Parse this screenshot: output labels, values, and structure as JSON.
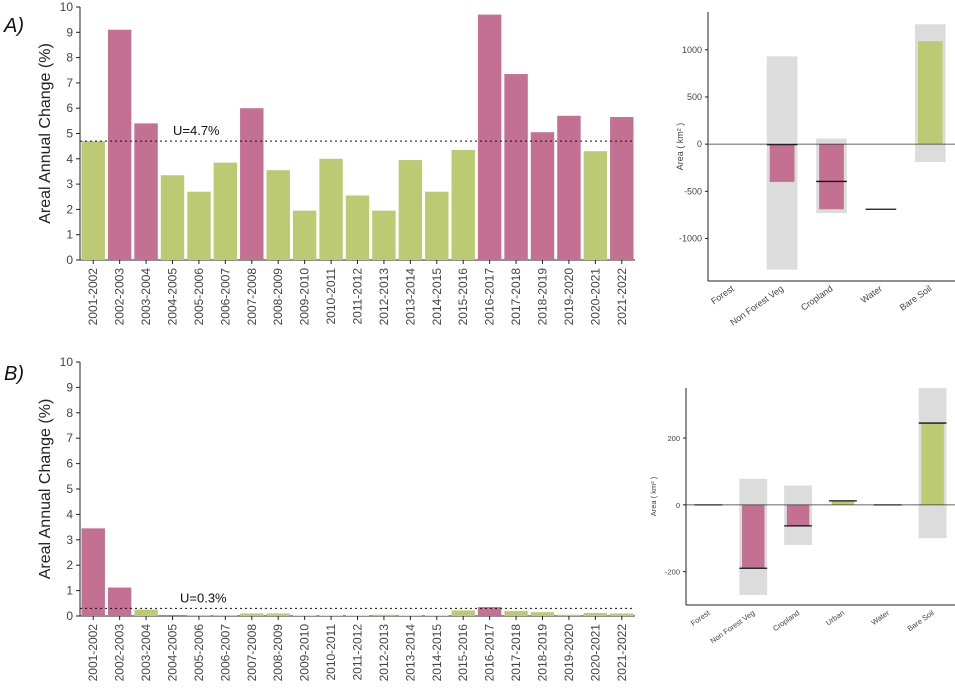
{
  "colors": {
    "loss": "#c37093",
    "gain": "#bccb73",
    "uncertainty_band": "#dcdcdc",
    "axis": "#222222"
  },
  "panels": [
    {
      "letter": "A)"
    },
    {
      "letter": "B)"
    }
  ],
  "chart_data": [
    {
      "id": "A-annual",
      "type": "bar",
      "title": "",
      "ylabel": "Areal Annual Change (%)",
      "xlabel": "",
      "ylim": [
        0,
        10
      ],
      "yticks": [
        0,
        1,
        2,
        3,
        4,
        5,
        6,
        7,
        8,
        9,
        10
      ],
      "categories": [
        "2001-2002",
        "2002-2003",
        "2003-2004",
        "2004-2005",
        "2005-2006",
        "2006-2007",
        "2007-2008",
        "2008-2009",
        "2009-2010",
        "2010-2011",
        "2011-2012",
        "2012-2013",
        "2013-2014",
        "2014-2015",
        "2015-2016",
        "2016-2017",
        "2017-2018",
        "2018-2019",
        "2019-2020",
        "2020-2021",
        "2021-2022"
      ],
      "values": [
        4.7,
        9.1,
        5.4,
        3.35,
        2.7,
        3.85,
        6.0,
        3.55,
        1.95,
        4.0,
        2.55,
        1.95,
        3.95,
        2.7,
        4.35,
        9.7,
        7.35,
        5.05,
        5.7,
        4.3,
        5.65
      ],
      "classes": [
        "gain",
        "loss",
        "loss",
        "gain",
        "gain",
        "gain",
        "loss",
        "gain",
        "gain",
        "gain",
        "gain",
        "gain",
        "gain",
        "gain",
        "gain",
        "loss",
        "loss",
        "loss",
        "loss",
        "gain",
        "loss"
      ],
      "threshold": {
        "value": 4.7,
        "label": "U=4.7%"
      }
    },
    {
      "id": "A-classes",
      "type": "bar",
      "ylabel": "Area ( km² )",
      "ylim": [
        -1450,
        1400
      ],
      "yticks": [
        -1000,
        -500,
        0,
        500,
        1000
      ],
      "ytick_labels": [
        "-1000",
        "-500",
        "0",
        "500",
        "1000"
      ],
      "categories": [
        "Forest",
        "Non Forest Veg",
        "Cropland",
        "Water",
        "Bare Soil"
      ],
      "values": [
        0,
        -400,
        -690,
        0,
        1090
      ],
      "classes": [
        "none",
        "loss",
        "loss",
        "none",
        "gain"
      ],
      "band_low": [
        null,
        -1330,
        -730,
        null,
        -190
      ],
      "band_high": [
        null,
        930,
        60,
        null,
        1270
      ],
      "reference_line": [
        null,
        -5,
        -395,
        -690,
        null
      ]
    },
    {
      "id": "B-annual",
      "type": "bar",
      "title": "",
      "ylabel": "Areal Annual Change (%)",
      "xlabel": "",
      "ylim": [
        0,
        10
      ],
      "yticks": [
        0,
        1,
        2,
        3,
        4,
        5,
        6,
        7,
        8,
        9,
        10
      ],
      "categories": [
        "2001-2002",
        "2002-2003",
        "2003-2004",
        "2004-2005",
        "2005-2006",
        "2006-2007",
        "2007-2008",
        "2008-2009",
        "2009-2010",
        "2010-2011",
        "2011-2012",
        "2012-2013",
        "2013-2014",
        "2014-2015",
        "2015-2016",
        "2016-2017",
        "2017-2018",
        "2018-2019",
        "2019-2020",
        "2020-2021",
        "2021-2022"
      ],
      "values": [
        3.45,
        1.12,
        0.25,
        0,
        0.03,
        0.03,
        0.1,
        0.1,
        0.02,
        0.02,
        0.02,
        0.05,
        0.02,
        0.02,
        0.22,
        0.35,
        0.2,
        0.15,
        0.05,
        0.12,
        0.1
      ],
      "classes": [
        "loss",
        "loss",
        "gain",
        "gain",
        "gain",
        "gain",
        "gain",
        "gain",
        "gain",
        "gain",
        "gain",
        "gain",
        "gain",
        "gain",
        "gain",
        "loss",
        "gain",
        "gain",
        "gain",
        "gain",
        "gain"
      ],
      "threshold": {
        "value": 0.3,
        "label": "U=0.3%"
      }
    },
    {
      "id": "B-classes",
      "type": "bar",
      "ylabel": "Area ( km² )",
      "ylim": [
        -300,
        350
      ],
      "yticks": [
        -200,
        0,
        200
      ],
      "ytick_labels": [
        "-200",
        "0",
        "200"
      ],
      "categories": [
        "Forest",
        "Non Forest Veg",
        "Cropland",
        "Urban",
        "Water",
        "Bare Soil"
      ],
      "values": [
        0,
        -190,
        -65,
        12,
        0,
        245
      ],
      "classes": [
        "none",
        "loss",
        "loss",
        "gain",
        "none",
        "gain"
      ],
      "band_low": [
        null,
        -270,
        -120,
        null,
        null,
        -100
      ],
      "band_high": [
        null,
        78,
        58,
        null,
        null,
        350
      ],
      "reference_line": [
        0,
        -190,
        -63,
        12,
        0,
        245
      ]
    }
  ]
}
